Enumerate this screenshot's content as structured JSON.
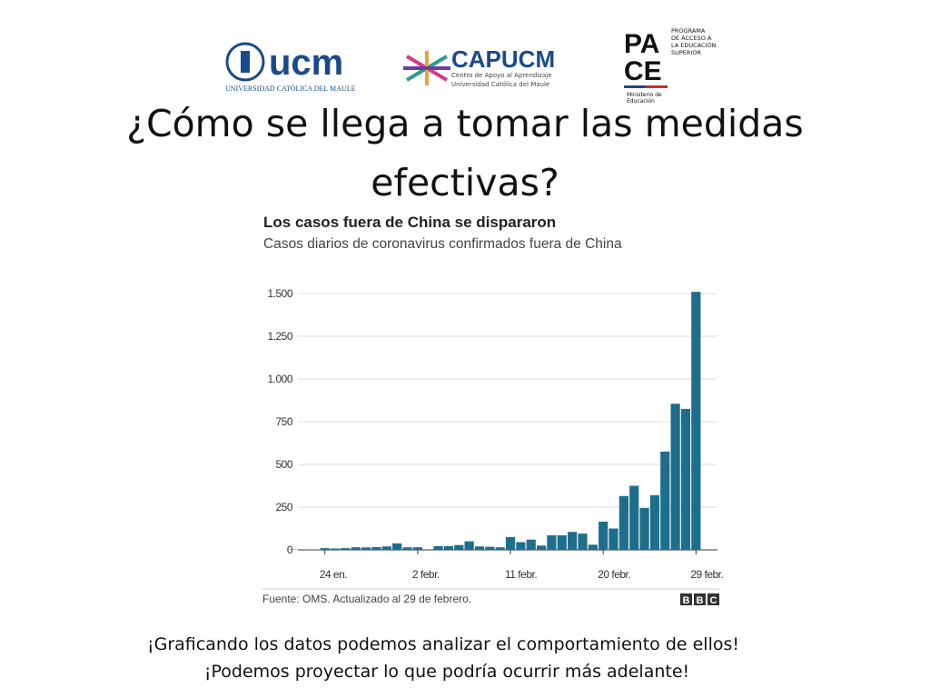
{
  "logos": {
    "ucm": "ucm",
    "ucm_sub": "UNIVERSIDAD CATÓLICA DEL MAULE",
    "capucm": "CAPUCM",
    "capucm_sub1": "Centro de Apoyo al Aprendizaje",
    "capucm_sub2": "Universidad Católica del Maule",
    "pace_1": "PA",
    "pace_2": "CE",
    "pace_text": [
      "PROGRAMA",
      "DE ACCESO A",
      "LA EDUCACIÓN",
      "SUPERIOR"
    ],
    "pace_ministry": [
      "Ministerio de",
      "Educación"
    ]
  },
  "slide_title": [
    "¿Cómo se llega a tomar las medidas",
    "efectivas?"
  ],
  "chart_data": {
    "type": "bar",
    "title": "Los casos fuera de China se dispararon",
    "subtitle": "Casos diarios de coronavirus confirmados fuera de China",
    "categories": [
      null,
      null,
      null,
      "24 en.",
      null,
      null,
      null,
      null,
      null,
      null,
      null,
      null,
      "2 febr.",
      null,
      null,
      null,
      null,
      null,
      null,
      null,
      null,
      "11 febr.",
      null,
      null,
      null,
      null,
      null,
      null,
      null,
      null,
      "20 febr.",
      null,
      null,
      null,
      null,
      null,
      null,
      null,
      null,
      "29 febr."
    ],
    "values": [
      2,
      3,
      2,
      10,
      8,
      10,
      15,
      14,
      16,
      20,
      38,
      15,
      15,
      0,
      22,
      22,
      28,
      50,
      20,
      18,
      15,
      75,
      45,
      60,
      25,
      85,
      85,
      105,
      95,
      30,
      165,
      125,
      315,
      375,
      245,
      320,
      575,
      855,
      825,
      1510
    ],
    "color": "#1d6e8c",
    "ylim": [
      0,
      1500
    ],
    "yticks": [
      0,
      250,
      500,
      750,
      {
        "value": 1000,
        "label": "1.000"
      },
      {
        "value": 1250,
        "label": "1.250"
      },
      {
        "value": 1500,
        "label": "1.500"
      }
    ],
    "grid": true,
    "source": "Fuente: OMS. Actualizado al 29 de febrero.",
    "logo": [
      "B",
      "B",
      "C"
    ]
  },
  "footer": [
    "¡Graficando los datos podemos analizar el comportamiento de ellos!",
    "¡Podemos proyectar lo que podría ocurrir más adelante!"
  ]
}
